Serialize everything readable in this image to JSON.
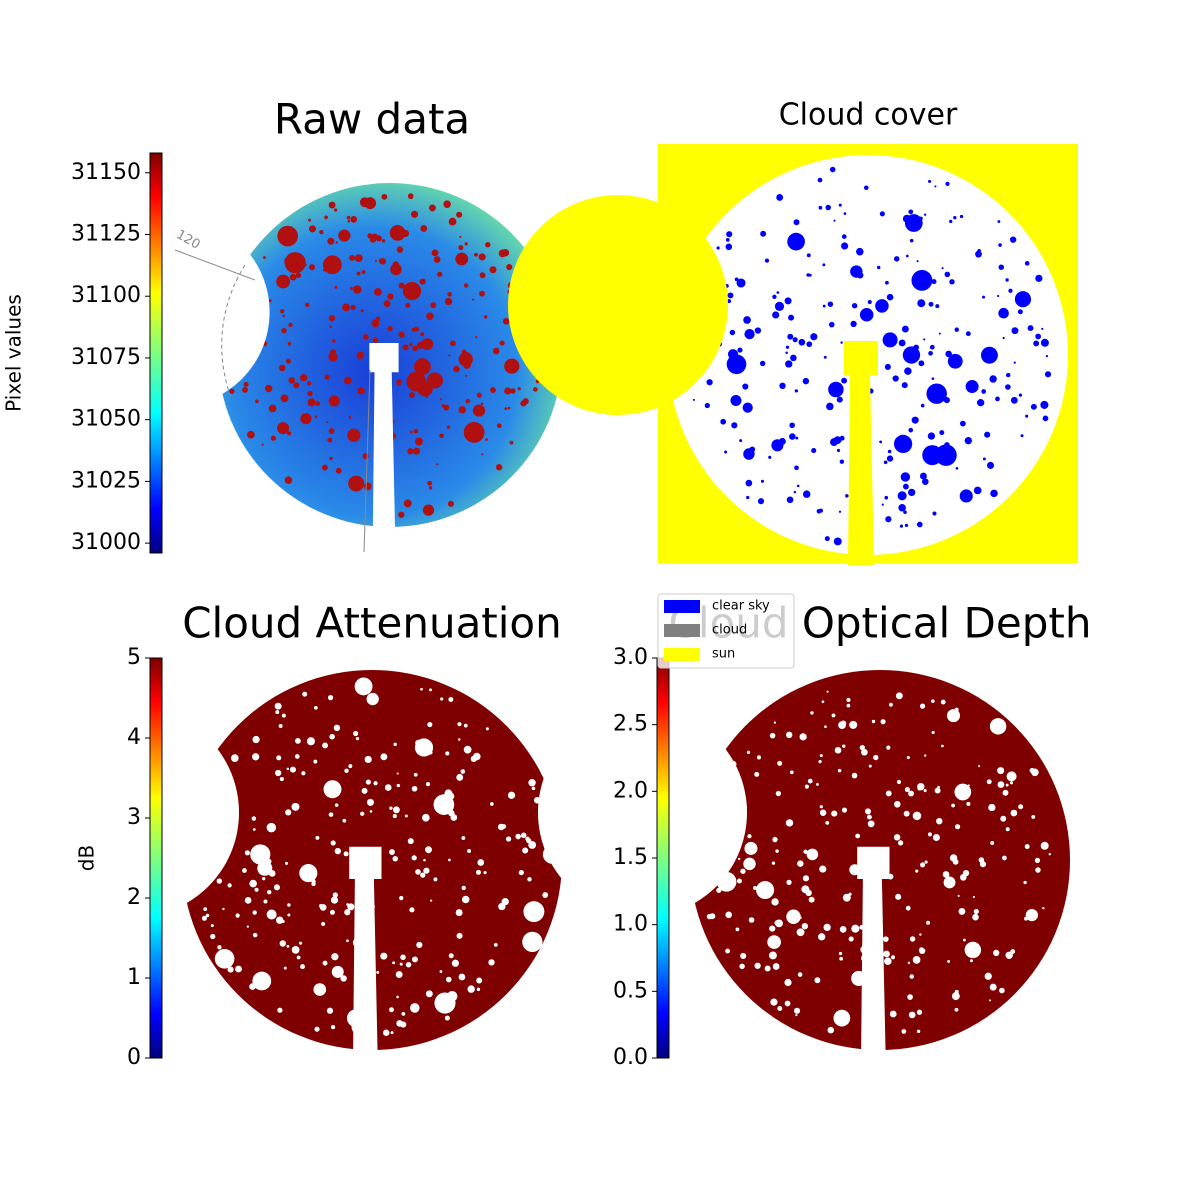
{
  "chart_data": [
    {
      "type": "image",
      "title": "Raw data",
      "annotations": [
        "120"
      ],
      "colorbar": {
        "label": "Pixel values",
        "colormap": "jet",
        "ylim": [
          30996,
          31158
        ],
        "yticks": [
          31000,
          31025,
          31050,
          31075,
          31100,
          31125,
          31150
        ]
      }
    },
    {
      "type": "image",
      "title": "Cloud cover",
      "legend": [
        {
          "name": "clear sky",
          "color": "#0000ff"
        },
        {
          "name": "cloud",
          "color": "#808080"
        },
        {
          "name": "sun",
          "color": "#ffff00"
        }
      ]
    },
    {
      "type": "image",
      "title": "Cloud Attenuation",
      "colorbar": {
        "label": "dB",
        "colormap": "jet",
        "ylim": [
          0,
          5
        ],
        "yticks": [
          0,
          1,
          2,
          3,
          4,
          5
        ]
      }
    },
    {
      "type": "image",
      "title": "Cloud Optical Depth",
      "colorbar": {
        "colormap": "jet",
        "ylim": [
          0,
          3
        ],
        "yticks": [
          {
            "value": 0,
            "label": "0.0"
          },
          0.5,
          {
            "value": 1,
            "label": "1.0"
          },
          1.5,
          {
            "value": 2,
            "label": "2.0"
          },
          2.5,
          {
            "value": 3,
            "label": "3.0"
          }
        ]
      }
    }
  ]
}
